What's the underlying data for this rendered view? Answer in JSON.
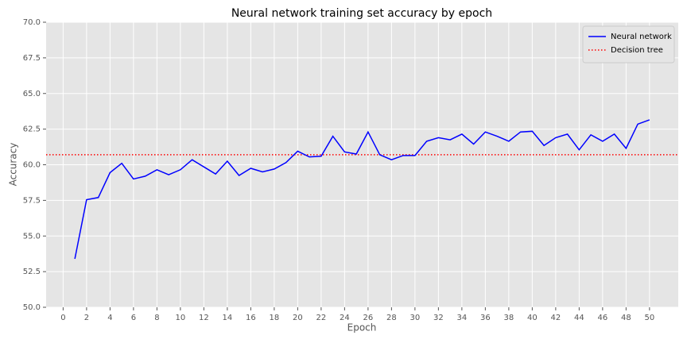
{
  "chart_data": {
    "type": "line",
    "title": "Neural network training set accuracy by epoch",
    "xlabel": "Epoch",
    "ylabel": "Accuracy",
    "x": [
      1,
      2,
      3,
      4,
      5,
      6,
      7,
      8,
      9,
      10,
      11,
      12,
      13,
      14,
      15,
      16,
      17,
      18,
      19,
      20,
      21,
      22,
      23,
      24,
      25,
      26,
      27,
      28,
      29,
      30,
      31,
      32,
      33,
      34,
      35,
      36,
      37,
      38,
      39,
      40,
      41,
      42,
      43,
      44,
      45,
      46,
      47,
      48,
      49,
      50
    ],
    "series": [
      {
        "name": "Neural network",
        "color": "#0000ff",
        "linestyle": "solid",
        "values": [
          53.4,
          57.55,
          57.7,
          59.45,
          60.1,
          59.0,
          59.2,
          59.65,
          59.3,
          59.65,
          60.35,
          59.85,
          59.35,
          60.25,
          59.25,
          59.75,
          59.5,
          59.7,
          60.15,
          60.95,
          60.55,
          60.6,
          62.0,
          60.9,
          60.75,
          62.3,
          60.7,
          60.35,
          60.65,
          60.65,
          61.65,
          61.9,
          61.75,
          62.15,
          61.45,
          62.3,
          62.0,
          61.65,
          62.3,
          62.35,
          61.35,
          61.9,
          62.15,
          61.05,
          62.1,
          61.65,
          62.15,
          61.15,
          62.85,
          63.15
        ]
      }
    ],
    "hlines": [
      {
        "name": "Decision tree",
        "color": "#ff0000",
        "linestyle": "dotted",
        "value": 60.7
      }
    ],
    "xlim": [
      -1.45,
      52.45
    ],
    "xticks": [
      0,
      2,
      4,
      6,
      8,
      10,
      12,
      14,
      16,
      18,
      20,
      22,
      24,
      26,
      28,
      30,
      32,
      34,
      36,
      38,
      40,
      42,
      44,
      46,
      48,
      50
    ],
    "ylim": [
      50,
      70
    ],
    "yticks": [
      {
        "value": 50,
        "label": "50.0"
      },
      {
        "value": 52.5,
        "label": "52.5"
      },
      {
        "value": 55,
        "label": "55.0"
      },
      {
        "value": 57.5,
        "label": "57.5"
      },
      {
        "value": 60,
        "label": "60.0"
      },
      {
        "value": 62.5,
        "label": "62.5"
      },
      {
        "value": 65,
        "label": "65.0"
      },
      {
        "value": 67.5,
        "label": "67.5"
      },
      {
        "value": 70,
        "label": "70.0"
      }
    ],
    "grid": true,
    "legend": "upper right"
  }
}
